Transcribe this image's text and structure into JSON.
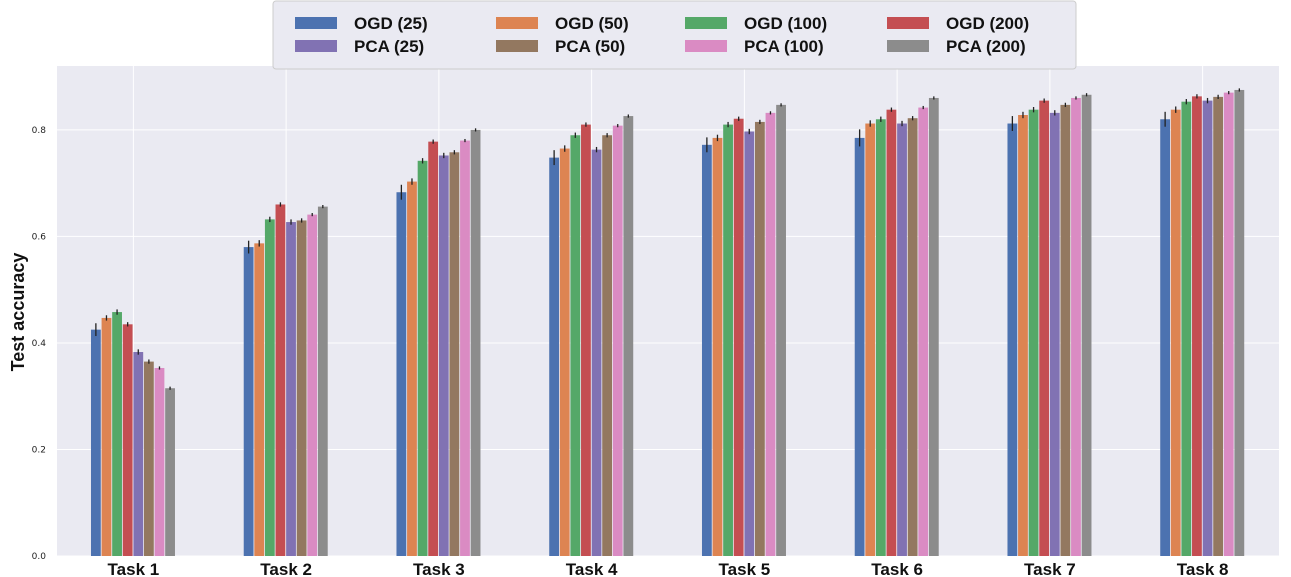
{
  "chart_data": {
    "type": "bar",
    "ylabel": "Test accuracy",
    "xlabel": "",
    "ylim": [
      0,
      0.92
    ],
    "yticks": [
      0.0,
      0.2,
      0.4,
      0.6,
      0.8
    ],
    "ytick_labels": [
      "0.0",
      "0.2",
      "0.4",
      "0.6",
      "0.8"
    ],
    "grid": true,
    "legend_position": "top-center",
    "categories": [
      "Task 1",
      "Task 2",
      "Task 3",
      "Task 4",
      "Task 5",
      "Task 6",
      "Task 7",
      "Task 8"
    ],
    "series": [
      {
        "name": "OGD (25)",
        "color": "#4c72b0",
        "values": [
          0.425,
          0.58,
          0.683,
          0.748,
          0.772,
          0.785,
          0.812,
          0.82
        ],
        "errors": [
          0.012,
          0.012,
          0.014,
          0.014,
          0.014,
          0.016,
          0.014,
          0.014
        ]
      },
      {
        "name": "OGD (50)",
        "color": "#dd8452",
        "values": [
          0.447,
          0.587,
          0.703,
          0.765,
          0.785,
          0.812,
          0.828,
          0.838
        ],
        "errors": [
          0.005,
          0.006,
          0.006,
          0.006,
          0.006,
          0.006,
          0.006,
          0.006
        ]
      },
      {
        "name": "OGD (100)",
        "color": "#55a868",
        "values": [
          0.458,
          0.632,
          0.742,
          0.79,
          0.81,
          0.82,
          0.838,
          0.853
        ],
        "errors": [
          0.005,
          0.005,
          0.005,
          0.005,
          0.005,
          0.005,
          0.005,
          0.005
        ]
      },
      {
        "name": "OGD (200)",
        "color": "#c44e52",
        "values": [
          0.435,
          0.66,
          0.778,
          0.81,
          0.821,
          0.838,
          0.855,
          0.863
        ],
        "errors": [
          0.004,
          0.004,
          0.004,
          0.004,
          0.004,
          0.004,
          0.004,
          0.004
        ]
      },
      {
        "name": "PCA (25)",
        "color": "#8172b3",
        "values": [
          0.383,
          0.627,
          0.752,
          0.763,
          0.797,
          0.812,
          0.832,
          0.855
        ],
        "errors": [
          0.005,
          0.005,
          0.005,
          0.005,
          0.005,
          0.005,
          0.005,
          0.005
        ]
      },
      {
        "name": "PCA (50)",
        "color": "#937860",
        "values": [
          0.365,
          0.63,
          0.758,
          0.79,
          0.815,
          0.822,
          0.847,
          0.862
        ],
        "errors": [
          0.004,
          0.004,
          0.004,
          0.004,
          0.004,
          0.004,
          0.004,
          0.004
        ]
      },
      {
        "name": "PCA (100)",
        "color": "#da8bc3",
        "values": [
          0.353,
          0.641,
          0.78,
          0.808,
          0.832,
          0.842,
          0.86,
          0.87
        ],
        "errors": [
          0.003,
          0.003,
          0.003,
          0.003,
          0.003,
          0.003,
          0.003,
          0.003
        ]
      },
      {
        "name": "PCA (200)",
        "color": "#8c8c8c",
        "values": [
          0.315,
          0.656,
          0.8,
          0.826,
          0.847,
          0.86,
          0.866,
          0.875
        ],
        "errors": [
          0.003,
          0.003,
          0.003,
          0.003,
          0.003,
          0.003,
          0.003,
          0.003
        ]
      }
    ]
  },
  "colors": {
    "plot_background": "#eaeaf2",
    "grid": "#ffffff",
    "legend_background": "#eaeaf2",
    "legend_border": "#cccccc",
    "error_bar": "#222222"
  }
}
